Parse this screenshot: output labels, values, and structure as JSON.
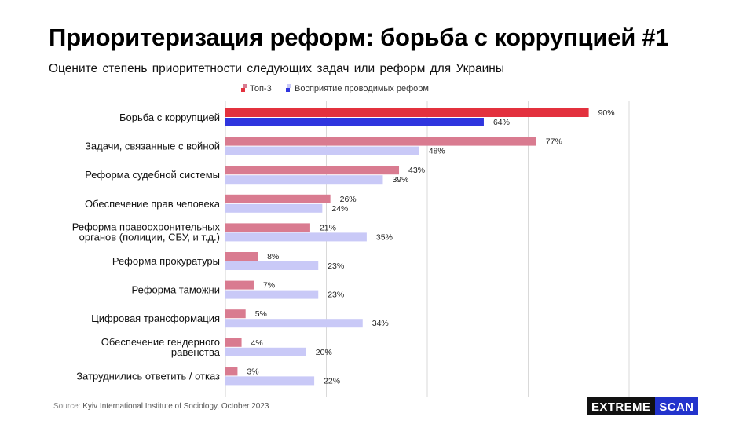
{
  "header": {
    "title": "Приоритеризация реформ: борьба с коррупцией #1",
    "subtitle": "Оцените степень приоритетности следующих задач или реформ для Украины"
  },
  "footer": {
    "source_label": "Source:",
    "source_text": "Kyiv International Institute of Sociology, October 2023",
    "logo_part1": "EXTREME",
    "logo_part2": "SCAN"
  },
  "colors": {
    "top3": "#d97b90",
    "top3_highlight": "#e3313e",
    "perception": "#c9c9f7",
    "perception_highlight": "#2f35de",
    "legend_top3": "#e3313e",
    "legend_perception": "#2f35de",
    "grid": "#d9d9d9",
    "logo_accent": "#2233cc"
  },
  "chart_data": {
    "type": "bar",
    "orientation": "horizontal",
    "title": "",
    "xlabel": "",
    "ylabel": "",
    "xlim": [
      0,
      100
    ],
    "grid": true,
    "legend_position": "top",
    "categories": [
      [
        "Борьба с коррупцией"
      ],
      [
        "Задачи, связанные с войной"
      ],
      [
        "Реформа судебной системы"
      ],
      [
        "Обеспечение прав человека"
      ],
      [
        "Реформа правоохронительных",
        "органов (полиции, СБУ, и т.д.)"
      ],
      [
        "Реформа прокуратуры"
      ],
      [
        "Реформа таможни"
      ],
      [
        "Цифровая трансформация"
      ],
      [
        "Обеспечение гендерного",
        "равенства"
      ],
      [
        "Затруднились ответить / отказ"
      ]
    ],
    "highlight_index": 0,
    "series": [
      {
        "name": "Топ-3",
        "values": [
          90,
          77,
          43,
          26,
          21,
          8,
          7,
          5,
          4,
          3
        ]
      },
      {
        "name": "Восприятие проводимых реформ",
        "values": [
          64,
          48,
          39,
          24,
          35,
          23,
          23,
          34,
          20,
          22
        ]
      }
    ],
    "value_suffix": "%"
  }
}
